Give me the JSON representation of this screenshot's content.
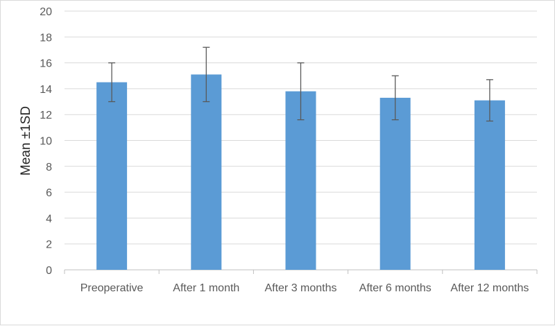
{
  "chart_data": {
    "type": "bar",
    "title": "",
    "xlabel": "",
    "ylabel": "Mean ±1SD",
    "categories": [
      "Preoperative",
      "After 1 month",
      "After 3 months",
      "After 6 months",
      "After 12 months"
    ],
    "values": [
      14.5,
      15.1,
      13.8,
      13.3,
      13.1
    ],
    "error_bars": {
      "upper": [
        16.0,
        17.2,
        16.0,
        15.0,
        14.7
      ],
      "lower": [
        13.0,
        13.0,
        11.6,
        11.6,
        11.5
      ]
    },
    "ylim": [
      0,
      20
    ],
    "yticks": [
      0,
      2,
      4,
      6,
      8,
      10,
      12,
      14,
      16,
      18,
      20
    ],
    "grid": true,
    "legend": "none",
    "colors": {
      "bar": "#5b9bd5",
      "error_bar": "#595959",
      "grid": "#d9d9d9"
    }
  }
}
